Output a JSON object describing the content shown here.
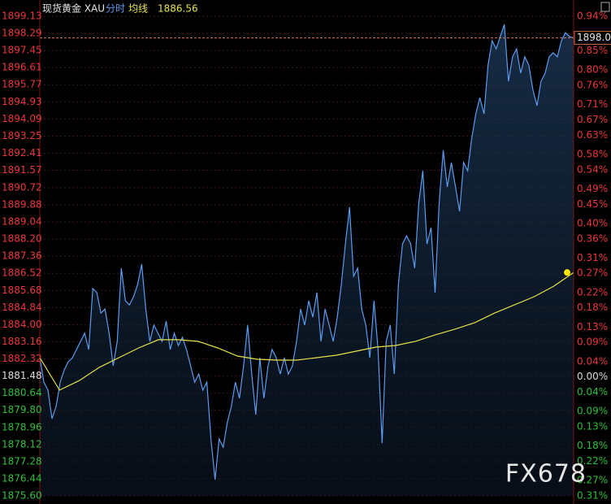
{
  "watermark": "FX678",
  "chart_data": {
    "type": "line",
    "title": "现货黄金 XAU",
    "ylim": [
      1875.6,
      1899.13
    ],
    "yticks": [
      1899.13,
      1898.29,
      1897.45,
      1896.61,
      1895.77,
      1894.93,
      1894.09,
      1893.25,
      1892.41,
      1891.57,
      1890.72,
      1889.88,
      1889.04,
      {
        "value": 1888.2,
        "label": "1888.20"
      },
      1887.36,
      1886.52,
      1885.68,
      1884.84,
      {
        "value": 1884,
        "label": "1884.00"
      },
      1883.16,
      1882.32,
      1881.48,
      1880.64,
      {
        "value": 1879.8,
        "label": "1879.80"
      },
      1878.96,
      1878.12,
      1877.28,
      1876.44,
      {
        "value": 1875.6,
        "label": "1875.60"
      }
    ],
    "y2lim": [
      -0.31,
      0.94
    ],
    "y2ticks": [
      {
        "value": 0.94,
        "label": "0.94%"
      },
      {
        "value": 0.89,
        "label": "0.89%"
      },
      {
        "value": 0.85,
        "label": "0.85%"
      },
      {
        "value": 0.8,
        "label": "0.80%"
      },
      {
        "value": 0.76,
        "label": "0.76%"
      },
      {
        "value": 0.71,
        "label": "0.71%"
      },
      {
        "value": 0.67,
        "label": "0.67%"
      },
      {
        "value": 0.63,
        "label": "0.63%"
      },
      {
        "value": 0.58,
        "label": "0.58%"
      },
      {
        "value": 0.54,
        "label": "0.54%"
      },
      {
        "value": 0.49,
        "label": "0.49%"
      },
      {
        "value": 0.45,
        "label": "0.45%"
      },
      {
        "value": 0.4,
        "label": "0.40%"
      },
      {
        "value": 0.36,
        "label": "0.36%"
      },
      {
        "value": 0.31,
        "label": "0.31%"
      },
      {
        "value": 0.27,
        "label": "0.27%"
      },
      {
        "value": 0.22,
        "label": "0.22%"
      },
      {
        "value": 0.18,
        "label": "0.18%"
      },
      {
        "value": 0.13,
        "label": "0.13%"
      },
      {
        "value": 0.09,
        "label": "0.09%"
      },
      {
        "value": 0.04,
        "label": "0.04%"
      },
      {
        "value": 0,
        "label": "0.00%"
      },
      {
        "value": -0.04,
        "label": "0.04%"
      },
      {
        "value": -0.09,
        "label": "0.09%"
      },
      {
        "value": -0.13,
        "label": "0.13%"
      },
      {
        "value": -0.18,
        "label": "0.18%"
      },
      {
        "value": -0.22,
        "label": "0.22%"
      },
      {
        "value": -0.27,
        "label": "0.27%"
      },
      {
        "value": -0.31,
        "label": "0.31%"
      }
    ],
    "grid": true,
    "series": [
      {
        "name": "分时",
        "color": "#5b9bf0",
        "values": [
          1882.38,
          1881.18,
          1880.79,
          1879.39,
          1879.99,
          1881.18,
          1881.78,
          1882.18,
          1882.38,
          1882.78,
          1883.18,
          1883.58,
          1882.78,
          1885.77,
          1885.57,
          1884.57,
          1884.77,
          1883.58,
          1881.98,
          1883.18,
          1886.77,
          1885.17,
          1884.97,
          1885.37,
          1885.97,
          1886.97,
          1884.77,
          1883.18,
          1883.98,
          1883.58,
          1883.18,
          1884.17,
          1882.78,
          1883.58,
          1882.98,
          1883.38,
          1882.78,
          1881.98,
          1881.18,
          1881.58,
          1880.79,
          1881.18,
          1878.39,
          1876.4,
          1878.39,
          1877.99,
          1879.19,
          1879.99,
          1881.18,
          1880.39,
          1881.98,
          1883.98,
          1881.58,
          1879.59,
          1882.38,
          1880.39,
          1881.98,
          1882.78,
          1882.38,
          1881.58,
          1882.38,
          1881.58,
          1881.98,
          1883.18,
          1884.77,
          1883.98,
          1885.17,
          1884.37,
          1885.57,
          1883.18,
          1884.77,
          1883.98,
          1883.18,
          1884.37,
          1885.97,
          1887.96,
          1889.76,
          1886.37,
          1886.77,
          1884.77,
          1883.98,
          1882.38,
          1885.17,
          1882.78,
          1878.19,
          1883.18,
          1883.98,
          1881.58,
          1885.97,
          1887.96,
          1888.36,
          1887.96,
          1886.77,
          1889.96,
          1891.55,
          1887.96,
          1888.76,
          1885.57,
          1889.96,
          1892.55,
          1890.76,
          1891.95,
          1890.76,
          1889.56,
          1891.95,
          1891.55,
          1893.15,
          1894.34,
          1895.14,
          1894.34,
          1896.74,
          1897.93,
          1897.53,
          1898.13,
          1898.73,
          1895.94,
          1897.14,
          1897.53,
          1896.34,
          1897.14,
          1896.74,
          1895.54,
          1894.74,
          1895.94,
          1896.34,
          1897.14,
          1897.34,
          1897.14,
          1897.93,
          1898.33,
          1898.13,
          1898.07
        ]
      }
    ],
    "average": {
      "name": "均线",
      "color": "#e6e24a",
      "values": [
        1882.38,
        1880.79,
        1881.26,
        1881.9,
        1882.38,
        1882.86,
        1883.26,
        1883.26,
        1883.18,
        1882.86,
        1882.46,
        1882.3,
        1882.26,
        1882.26,
        1882.38,
        1882.5,
        1882.7,
        1882.9,
        1882.98,
        1883.18,
        1883.5,
        1883.78,
        1884.1,
        1884.57,
        1884.97,
        1885.37,
        1885.89,
        1886.56
      ]
    }
  }
}
